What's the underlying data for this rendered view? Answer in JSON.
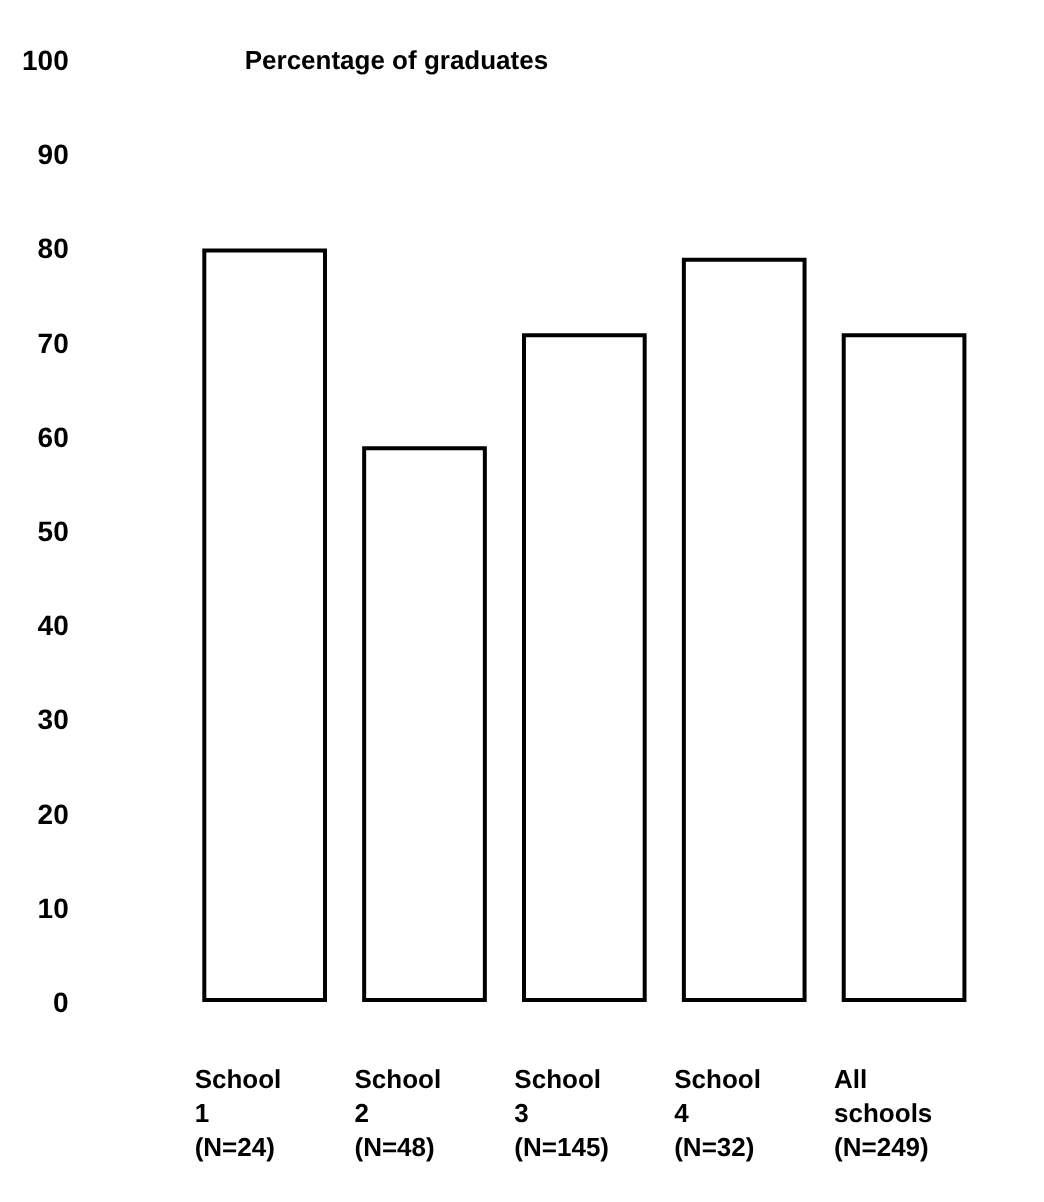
{
  "chart_data": {
    "type": "bar",
    "ylabel": "Percentage of graduates",
    "categories": [
      "School\n1\n(N=24)",
      "School\n2\n(N=48)",
      "School\n3\n(N=145)",
      "School\n4\n(N=32)",
      "All\nschools\n(N=249)"
    ],
    "values": [
      80,
      59,
      71,
      79,
      71
    ],
    "color": "#ffffff",
    "ylim": [
      0,
      100
    ],
    "yticks": [
      0,
      10,
      20,
      30,
      40,
      50,
      60,
      70,
      80,
      90,
      100
    ],
    "grid": false
  }
}
